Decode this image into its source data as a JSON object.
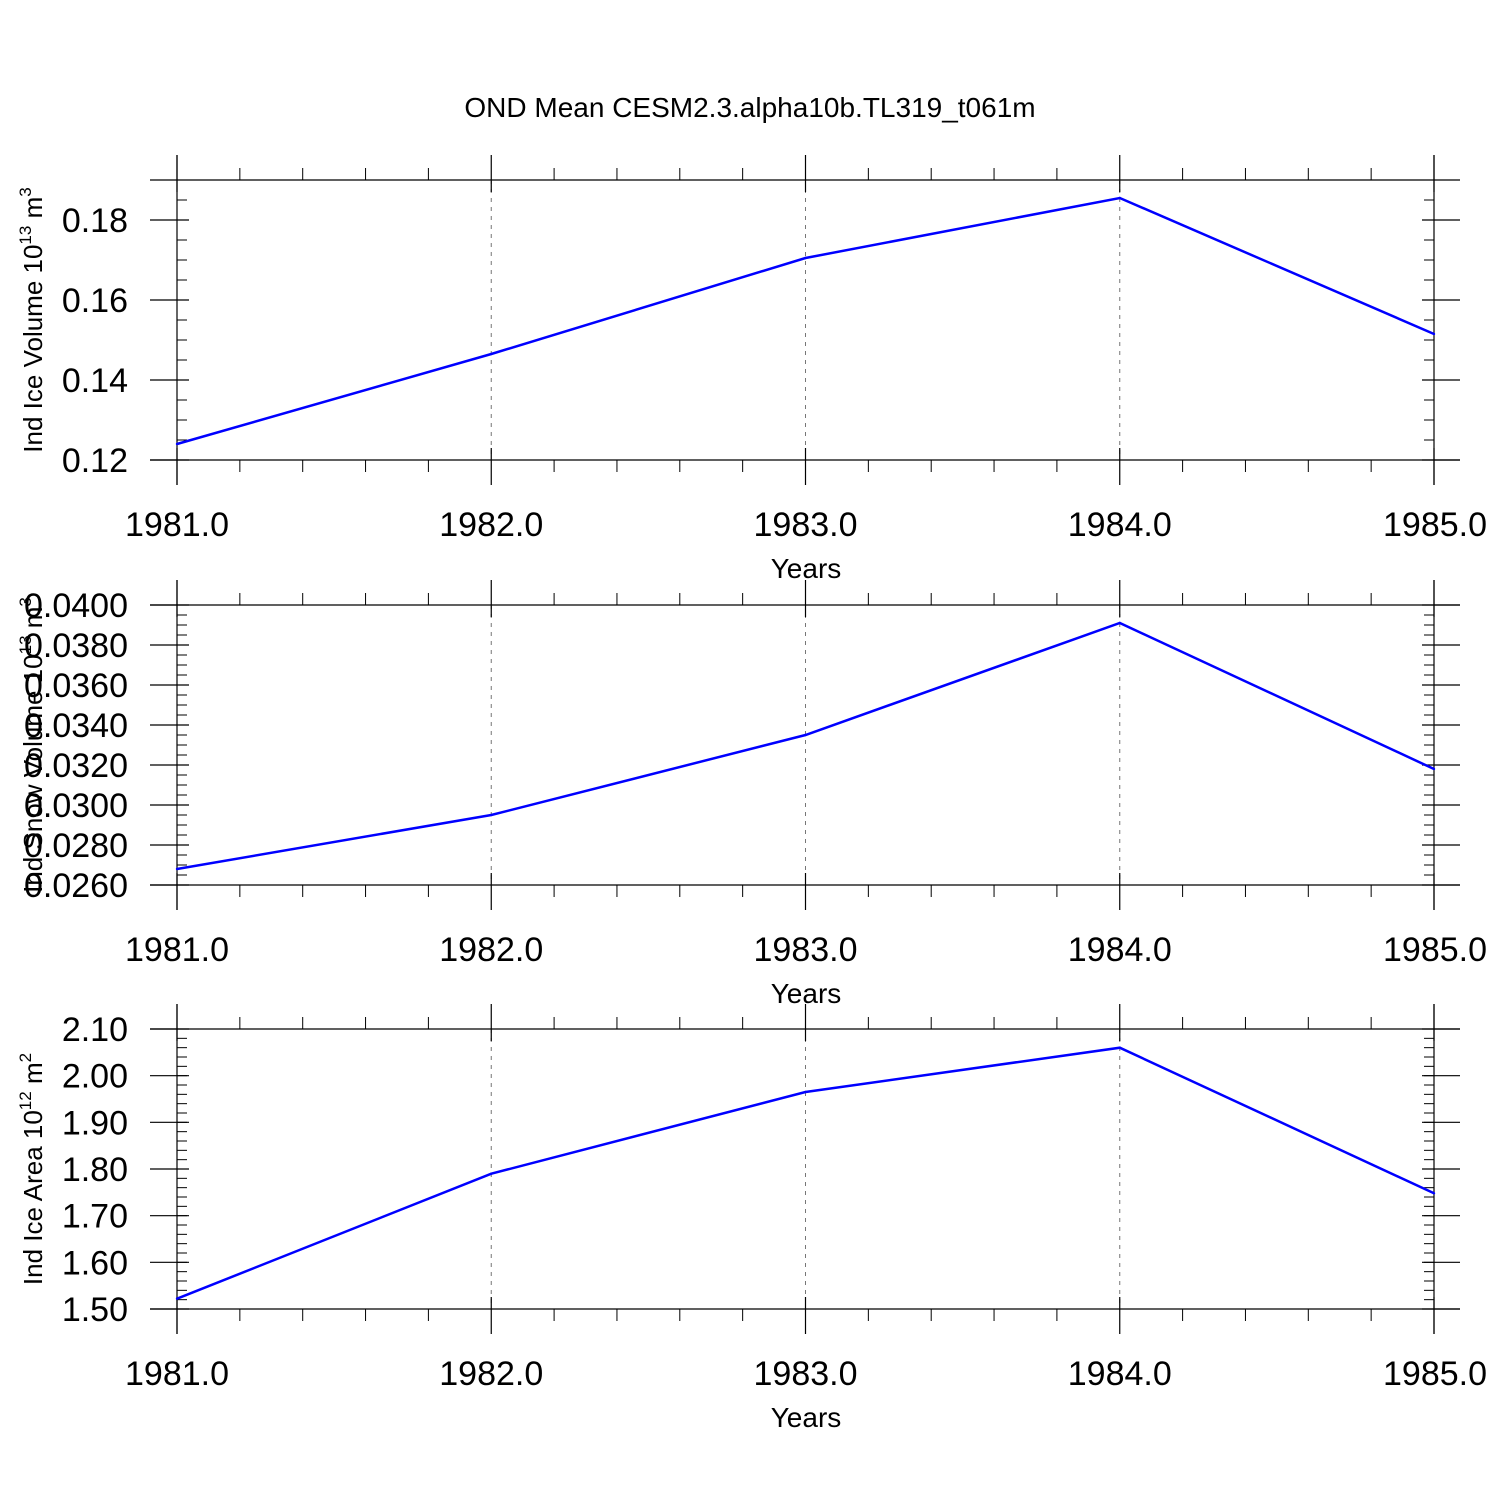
{
  "figure": {
    "title": "OND Mean CESM2.3.alpha10b.TL319_t061m"
  },
  "chart_data": [
    {
      "type": "line",
      "title": "OND Mean CESM2.3.alpha10b.TL319_t061m",
      "xlabel": "Years",
      "ylabel": {
        "text": "Ind Ice Volume 10",
        "exp": "13",
        "unit": " m",
        "unit_exp": "3"
      },
      "x": [
        1981,
        1982,
        1983,
        1984,
        1985
      ],
      "xlim": [
        1981,
        1985
      ],
      "xticks": [
        1981,
        1982,
        1983,
        1984,
        1985
      ],
      "xtick_labels": [
        "1981.0",
        "1982.0",
        "1983.0",
        "1984.0",
        "1985.0"
      ],
      "ylim": [
        0.12,
        0.19
      ],
      "yticks": [
        0.12,
        0.14,
        0.16,
        0.18
      ],
      "ytick_labels": [
        "0.12",
        "0.14",
        "0.16",
        "0.18"
      ],
      "y_minor_step": 0.005,
      "series": [
        {
          "values": [
            0.124,
            0.1465,
            0.1705,
            0.1855,
            0.1515
          ],
          "color": "#0000ff"
        }
      ],
      "grid": "dashed vertical at major x ticks"
    },
    {
      "type": "line",
      "xlabel": "Years",
      "ylabel": {
        "text": "Ind Snow Volume 10",
        "exp": "13",
        "unit": " m",
        "unit_exp": "3"
      },
      "x": [
        1981,
        1982,
        1983,
        1984,
        1985
      ],
      "xlim": [
        1981,
        1985
      ],
      "xticks": [
        1981,
        1982,
        1983,
        1984,
        1985
      ],
      "xtick_labels": [
        "1981.0",
        "1982.0",
        "1983.0",
        "1984.0",
        "1985.0"
      ],
      "ylim": [
        0.026,
        0.04
      ],
      "yticks": [
        0.026,
        0.028,
        0.03,
        0.032,
        0.034,
        0.036,
        0.038,
        0.04
      ],
      "ytick_labels": [
        "0.0260",
        "0.0280",
        "0.0300",
        "0.0320",
        "0.0340",
        "0.0360",
        "0.0380",
        "0.0400"
      ],
      "y_minor_step": 0.0005,
      "series": [
        {
          "values": [
            0.0268,
            0.0295,
            0.0335,
            0.0391,
            0.0318
          ],
          "color": "#0000ff"
        }
      ],
      "grid": "dashed vertical at major x ticks"
    },
    {
      "type": "line",
      "xlabel": "Years",
      "ylabel": {
        "text": "Ind Ice Area 10",
        "exp": "12",
        "unit": " m",
        "unit_exp": "2"
      },
      "x": [
        1981,
        1982,
        1983,
        1984,
        1985
      ],
      "xlim": [
        1981,
        1985
      ],
      "xticks": [
        1981,
        1982,
        1983,
        1984,
        1985
      ],
      "xtick_labels": [
        "1981.0",
        "1982.0",
        "1983.0",
        "1984.0",
        "1985.0"
      ],
      "ylim": [
        1.5,
        2.1
      ],
      "yticks": [
        1.5,
        1.6,
        1.7,
        1.8,
        1.9,
        2.0,
        2.1
      ],
      "ytick_labels": [
        "1.50",
        "1.60",
        "1.70",
        "1.80",
        "1.90",
        "2.00",
        "2.10"
      ],
      "y_minor_step": 0.02,
      "series": [
        {
          "values": [
            1.522,
            1.79,
            1.965,
            2.06,
            1.748
          ],
          "color": "#0000ff"
        }
      ],
      "grid": "dashed vertical at major x ticks"
    }
  ]
}
